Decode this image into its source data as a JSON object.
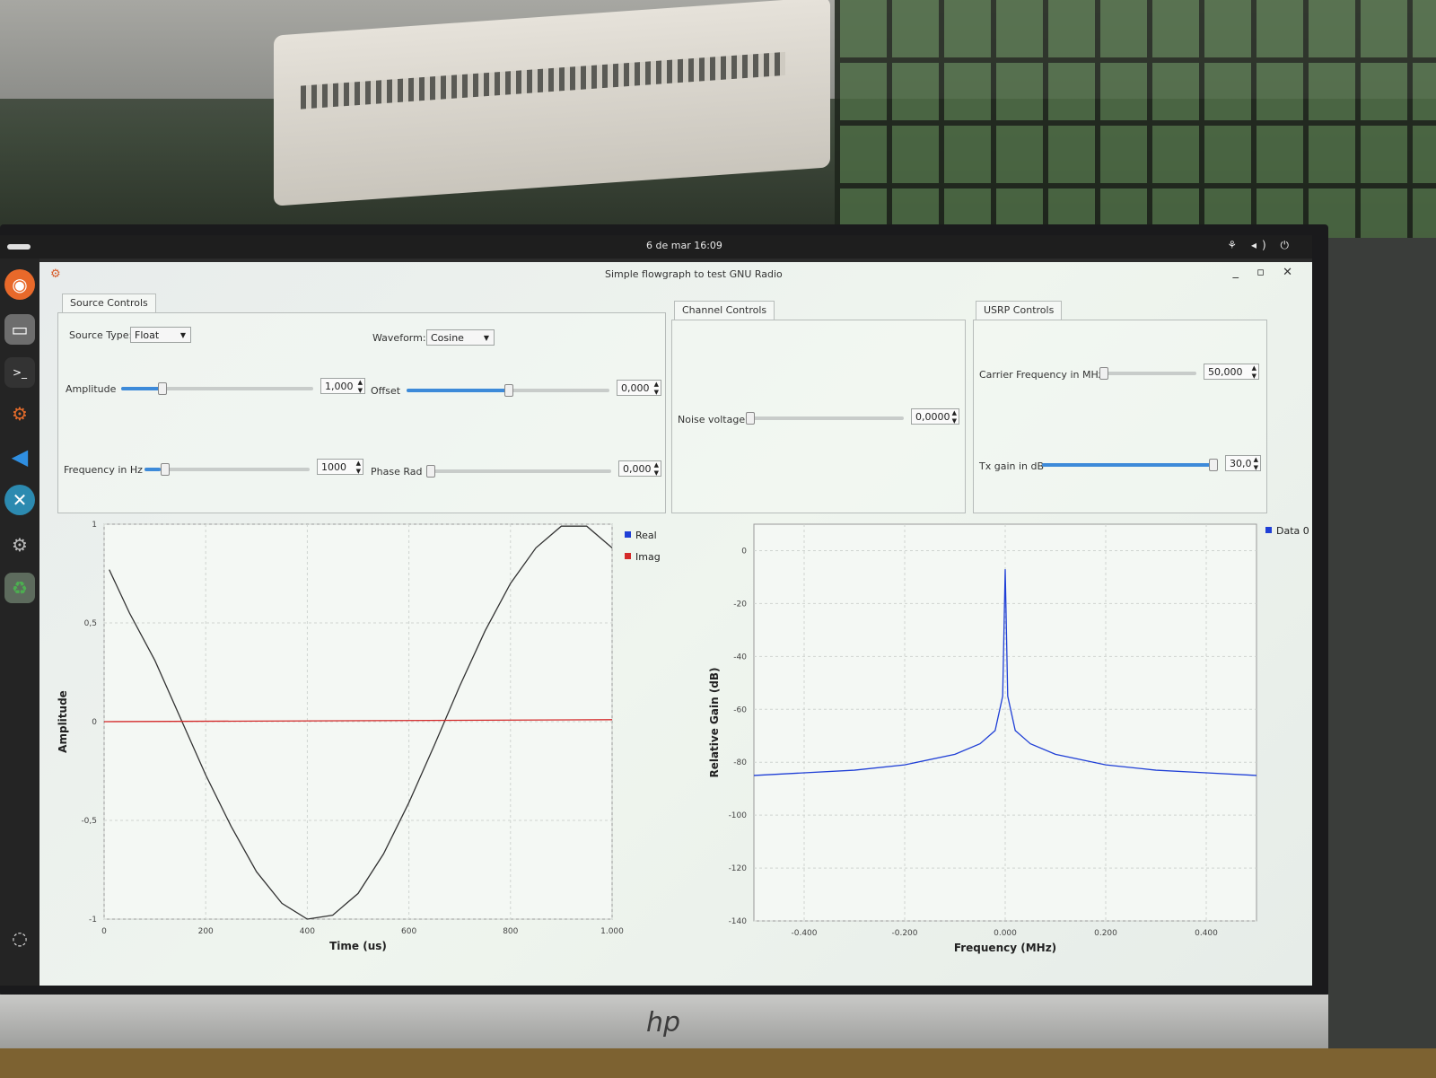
{
  "topbar": {
    "clock": "6 de mar  16:09"
  },
  "window": {
    "title": "Simple flowgraph to test GNU Radio"
  },
  "source_controls": {
    "tab": "Source Controls",
    "source_type_label": "Source Type:",
    "source_type_value": "Float",
    "waveform_label": "Waveform:",
    "waveform_value": "Cosine",
    "amplitude_label": "Amplitude",
    "amplitude_value": "1,000",
    "amplitude_level": 0.2,
    "offset_label": "Offset",
    "offset_value": "0,000",
    "offset_level": 0.5,
    "frequency_label": "Frequency in Hz",
    "frequency_value": "1000",
    "frequency_level": 0.1,
    "phase_label": "Phase Rad",
    "phase_value": "0,000",
    "phase_level": 0.0
  },
  "channel_controls": {
    "tab": "Channel Controls",
    "noise_label": "Noise voltage",
    "noise_value": "0,0000",
    "noise_level": 0.0
  },
  "usrp_controls": {
    "tab": "USRP Controls",
    "carrier_label": "Carrier Frequency in MHz",
    "carrier_value": "50,000",
    "carrier_level": 0.0,
    "txgain_label": "Tx gain in dB",
    "txgain_value": "30,0",
    "txgain_level": 1.0
  },
  "chart_data": [
    {
      "type": "line",
      "xlabel": "Time (us)",
      "ylabel": "Amplitude",
      "xlim": [
        0,
        1000
      ],
      "ylim": [
        -1,
        1
      ],
      "xticks": [
        "0",
        "200",
        "400",
        "600",
        "800",
        "1.000"
      ],
      "yticks": [
        "1",
        "0,5",
        "0",
        "-0,5",
        "-1"
      ],
      "legend_position": "top-right",
      "grid": true,
      "series": [
        {
          "name": "Real",
          "color": "#1f3fd6",
          "x": [
            10,
            50,
            100,
            150,
            200,
            250,
            300,
            350,
            400,
            450,
            500,
            550,
            600,
            650,
            700,
            750,
            800,
            850,
            900,
            950,
            1000
          ],
          "y": [
            0.77,
            0.55,
            0.31,
            0.02,
            -0.27,
            -0.53,
            -0.76,
            -0.92,
            -1.0,
            -0.98,
            -0.87,
            -0.67,
            -0.41,
            -0.12,
            0.18,
            0.46,
            0.7,
            0.88,
            0.99,
            0.99,
            0.88
          ]
        },
        {
          "name": "Imag",
          "color": "#d42a2a",
          "x": [
            0,
            1000
          ],
          "y": [
            0,
            0.01
          ]
        }
      ]
    },
    {
      "type": "line",
      "xlabel": "Frequency (MHz)",
      "ylabel": "Relative Gain (dB)",
      "xlim": [
        -0.5,
        0.5
      ],
      "ylim": [
        -140,
        10
      ],
      "xticks": [
        "-0.400",
        "-0.200",
        "0.000",
        "0.200",
        "0.400"
      ],
      "yticks": [
        "0",
        "-20",
        "-40",
        "-60",
        "-80",
        "-100",
        "-120",
        "-140"
      ],
      "legend_position": "top-right",
      "grid": true,
      "series": [
        {
          "name": "Data 0",
          "color": "#1f3fd6",
          "x": [
            -0.5,
            -0.4,
            -0.3,
            -0.2,
            -0.1,
            -0.05,
            -0.02,
            -0.005,
            0,
            0.005,
            0.02,
            0.05,
            0.1,
            0.2,
            0.3,
            0.4,
            0.5
          ],
          "y": [
            -85,
            -84,
            -83,
            -81,
            -77,
            -73,
            -68,
            -55,
            -7,
            -55,
            -68,
            -73,
            -77,
            -81,
            -83,
            -84,
            -85
          ]
        }
      ]
    }
  ]
}
